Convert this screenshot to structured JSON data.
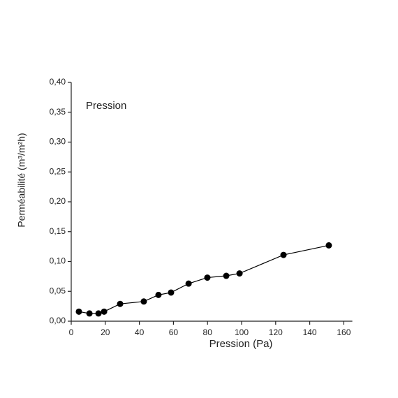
{
  "chart_data": {
    "type": "line",
    "annotation": "Pression",
    "x_label": "Pression (Pa)",
    "y_label": "Perméabilité (m³/m²h)",
    "x": [
      4.5,
      10.7,
      16,
      19.3,
      28.7,
      42.6,
      51.2,
      58.6,
      68.9,
      79.9,
      91,
      98.8,
      124.6,
      151.2
    ],
    "values": [
      0.016,
      0.013,
      0.013,
      0.016,
      0.029,
      0.033,
      0.044,
      0.048,
      0.063,
      0.073,
      0.076,
      0.08,
      0.111,
      0.127
    ],
    "color": "#000000",
    "xlim": [
      0,
      165
    ],
    "xticks": [
      0,
      20,
      40,
      60,
      80,
      100,
      120,
      140,
      160
    ],
    "ylim": [
      0,
      0.4
    ],
    "yticks": [
      {
        "value": 0,
        "label": "0,00"
      },
      {
        "value": 0.05,
        "label": "0,05"
      },
      {
        "value": 0.1,
        "label": "0,10"
      },
      {
        "value": 0.15,
        "label": "0,15"
      },
      {
        "value": 0.2,
        "label": "0,20"
      },
      {
        "value": 0.25,
        "label": "0,25"
      },
      {
        "value": 0.3,
        "label": "0,30"
      },
      {
        "value": 0.35,
        "label": "0,35"
      },
      {
        "value": 0.4,
        "label": "0,40"
      }
    ],
    "grid": false
  }
}
